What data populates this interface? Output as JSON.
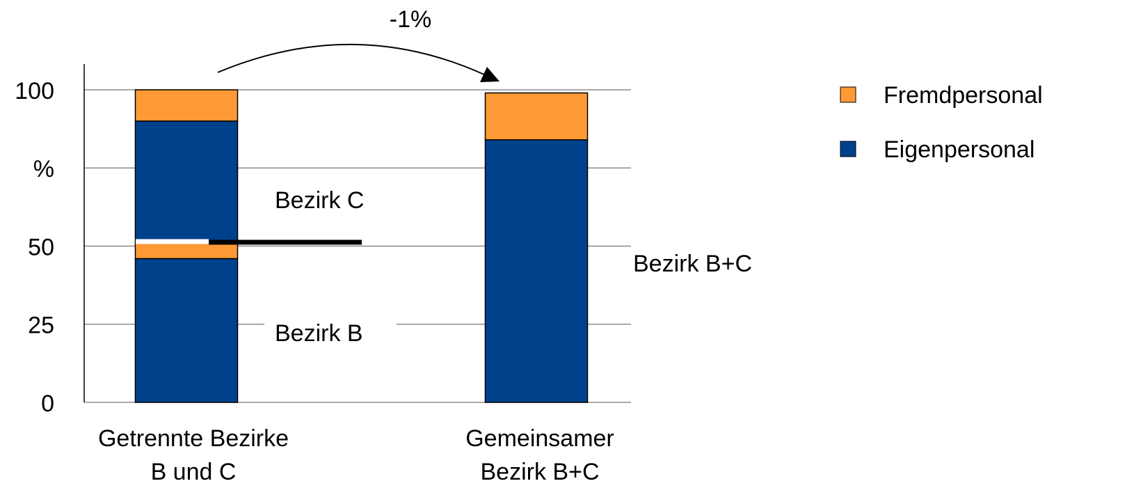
{
  "chart_data": {
    "type": "stacked-bar",
    "categories": [
      [
        "Getrennte Bezirke",
        "B und C"
      ],
      [
        "Gemeinsamer",
        "Bezirk B+C"
      ]
    ],
    "series": [
      {
        "name": "Fremdpersonal",
        "color": "#fe9a35"
      },
      {
        "name": "Eigenpersonal",
        "color": "#00418c"
      }
    ],
    "stacks": [
      [
        {
          "series": 1,
          "value": 46
        },
        {
          "series": 0,
          "value": 5
        },
        {
          "series": 1,
          "value": 39
        },
        {
          "series": 0,
          "value": 10
        }
      ],
      [
        {
          "series": 1,
          "value": 84
        },
        {
          "series": 0,
          "value": 15
        }
      ]
    ],
    "ylim": [
      0,
      100
    ],
    "yticks": [
      0,
      25,
      50,
      {
        "value": 75,
        "label": "%"
      },
      100
    ],
    "grid": true,
    "legend": "right",
    "annotations": [
      "-1%",
      "Bezirk C",
      "Bezirk B",
      "Bezirk B+C"
    ]
  }
}
